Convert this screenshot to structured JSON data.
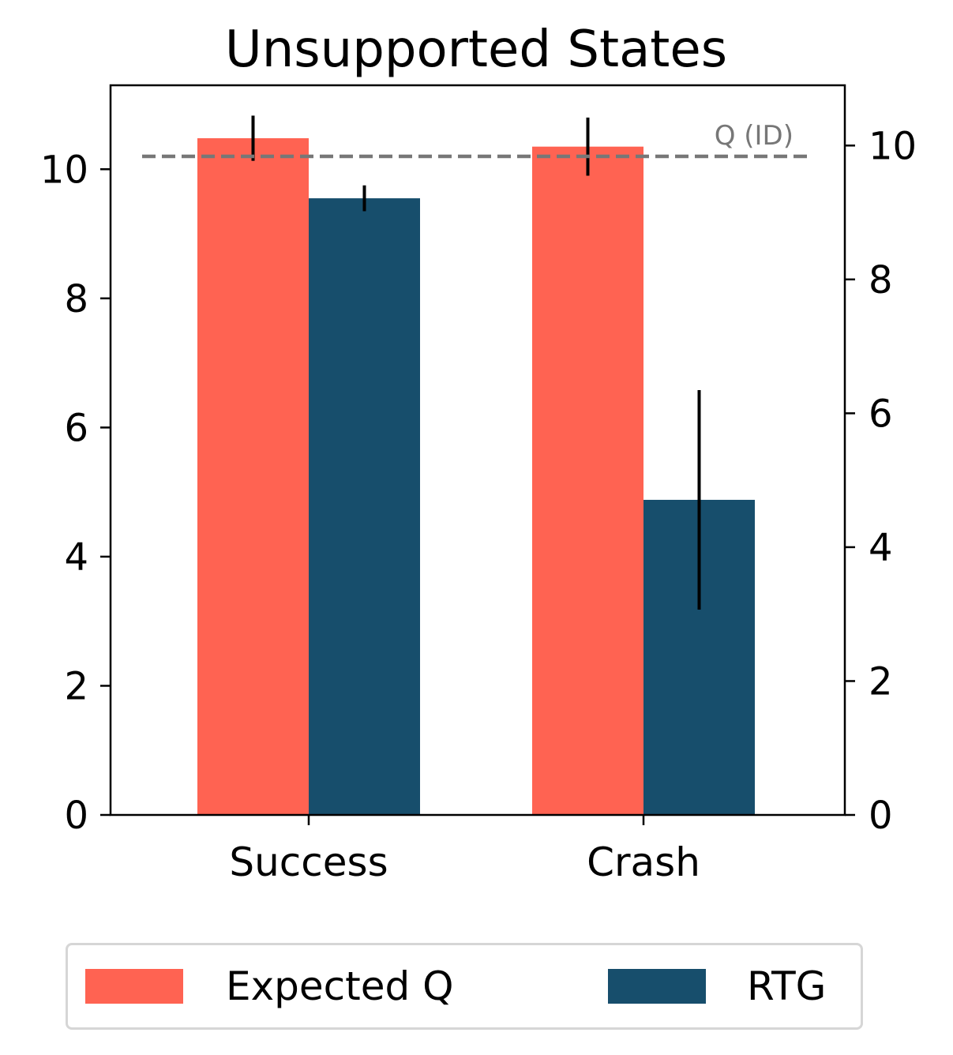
{
  "chart_data": {
    "type": "bar",
    "title": "Unsupported States",
    "categories": [
      "Success",
      "Crash"
    ],
    "series": [
      {
        "name": "Expected Q",
        "color": "#ff6352",
        "values": [
          10.48,
          10.35
        ],
        "errors": [
          0.35,
          0.45
        ]
      },
      {
        "name": "RTG",
        "color": "#174e6c",
        "values": [
          9.55,
          4.88
        ],
        "errors": [
          0.2,
          1.7
        ]
      }
    ],
    "xlabel": "",
    "ylabel": "",
    "ylim": [
      0,
      11.3
    ],
    "yticks": [
      0,
      2,
      4,
      6,
      8,
      10
    ],
    "right_axis": {
      "ylim": [
        0,
        10.9
      ],
      "yticks": [
        0,
        2,
        4,
        6,
        8,
        10
      ]
    },
    "reference_line": {
      "label": "Q (ID)",
      "value": 10.2,
      "color": "#777777",
      "style": "dashed"
    },
    "grid": false,
    "legend": {
      "placement": "bottom",
      "columns": 2
    }
  }
}
